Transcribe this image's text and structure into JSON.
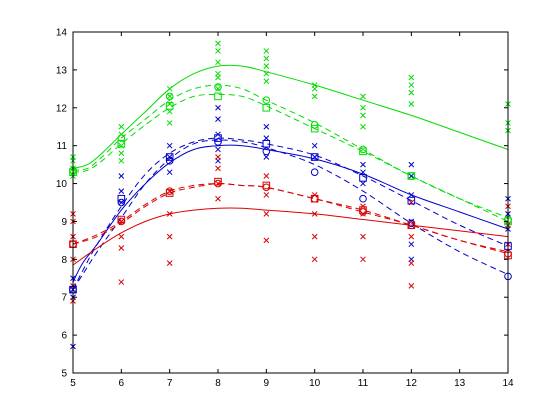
{
  "chart_data": {
    "type": "line",
    "xlim": [
      5,
      14
    ],
    "ylim": [
      5,
      14
    ],
    "x_ticks": [
      5,
      6,
      7,
      8,
      9,
      10,
      11,
      12,
      13,
      14
    ],
    "y_ticks": [
      5,
      6,
      7,
      8,
      9,
      10,
      11,
      12,
      13,
      14
    ],
    "grid": false,
    "legend": "none",
    "series": [
      {
        "color": "#00dd00",
        "style": "solid",
        "marker": "none",
        "x": [
          5,
          5.3,
          5.6,
          6,
          6.5,
          7,
          7.5,
          8,
          8.5,
          9,
          10,
          11,
          12,
          13,
          14
        ],
        "y": [
          10.4,
          10.5,
          10.8,
          11.3,
          11.9,
          12.5,
          12.9,
          13.1,
          13.1,
          12.95,
          12.6,
          12.2,
          11.8,
          11.35,
          10.9
        ]
      },
      {
        "color": "#00dd00",
        "style": "dashed",
        "marker": "circle",
        "x": [
          5,
          5.3,
          5.6,
          6,
          6.5,
          7,
          7.5,
          8,
          8.5,
          9,
          10,
          11,
          12,
          13,
          14
        ],
        "y": [
          10.35,
          10.4,
          10.7,
          11.2,
          11.7,
          12.2,
          12.5,
          12.6,
          12.5,
          12.2,
          11.6,
          10.9,
          10.2,
          9.6,
          9.1
        ]
      },
      {
        "color": "#00dd00",
        "style": "dashed",
        "marker": "square",
        "x": [
          5,
          5.3,
          5.6,
          6,
          6.5,
          7,
          7.5,
          8,
          8.5,
          9,
          10,
          11,
          12,
          13,
          14
        ],
        "y": [
          10.3,
          10.35,
          10.6,
          11.05,
          11.55,
          12.0,
          12.3,
          12.35,
          12.3,
          12.05,
          11.45,
          10.85,
          10.2,
          9.6,
          9.0
        ]
      },
      {
        "color": "#0000cc",
        "style": "solid",
        "marker": "none",
        "x": [
          5,
          5.2,
          5.5,
          6,
          6.5,
          7,
          7.5,
          8,
          8.5,
          9,
          10,
          11,
          12,
          13,
          14
        ],
        "y": [
          7.4,
          7.9,
          8.4,
          9.3,
          10.0,
          10.55,
          10.9,
          11.0,
          11.0,
          10.9,
          10.65,
          10.25,
          9.7,
          9.25,
          8.8
        ]
      },
      {
        "color": "#0000cc",
        "style": "dashed",
        "marker": "circle",
        "x": [
          5,
          5.2,
          5.5,
          6,
          6.5,
          7,
          7.5,
          8,
          8.5,
          9,
          10,
          11,
          12,
          13,
          14
        ],
        "y": [
          7.2,
          7.6,
          8.2,
          9.1,
          10.0,
          10.65,
          11.05,
          11.15,
          11.1,
          10.95,
          10.5,
          9.8,
          8.95,
          8.2,
          7.6
        ]
      },
      {
        "color": "#0000cc",
        "style": "dashed",
        "marker": "square",
        "x": [
          5,
          5.2,
          5.5,
          6,
          6.5,
          7,
          7.5,
          8,
          8.5,
          9,
          10,
          11,
          12,
          13,
          14
        ],
        "y": [
          7.2,
          7.7,
          8.4,
          9.4,
          10.25,
          10.8,
          11.1,
          11.2,
          11.15,
          11.05,
          10.75,
          10.2,
          9.55,
          8.9,
          8.35
        ]
      },
      {
        "color": "#dd0000",
        "style": "solid",
        "marker": "none",
        "x": [
          5,
          5.5,
          6,
          6.5,
          7,
          7.5,
          8,
          8.5,
          9,
          10,
          11,
          12,
          13,
          14
        ],
        "y": [
          7.85,
          8.3,
          8.7,
          9.0,
          9.2,
          9.3,
          9.35,
          9.35,
          9.3,
          9.2,
          9.05,
          8.9,
          8.75,
          8.6
        ]
      },
      {
        "color": "#dd0000",
        "style": "dashed",
        "marker": "circle",
        "x": [
          5,
          5.5,
          6,
          6.5,
          7,
          7.5,
          8,
          8.5,
          9,
          10,
          11,
          12,
          13,
          14
        ],
        "y": [
          8.4,
          8.65,
          9.0,
          9.45,
          9.8,
          9.95,
          10.0,
          9.95,
          9.9,
          9.6,
          9.3,
          8.9,
          8.5,
          8.2
        ]
      },
      {
        "color": "#dd0000",
        "style": "dashed",
        "marker": "square",
        "x": [
          5,
          5.5,
          6,
          6.5,
          7,
          7.5,
          8,
          8.5,
          9,
          10,
          11,
          12,
          13,
          14
        ],
        "y": [
          8.4,
          8.6,
          8.95,
          9.4,
          9.75,
          9.9,
          10.0,
          9.95,
          9.9,
          9.6,
          9.25,
          8.9,
          8.5,
          8.15
        ]
      }
    ],
    "scatter": [
      {
        "color": "#00dd00",
        "marker": "x",
        "points": [
          [
            5,
            10.2
          ],
          [
            5,
            10.4
          ],
          [
            5,
            10.6
          ],
          [
            5,
            10.7
          ],
          [
            6,
            10.6
          ],
          [
            6,
            10.8
          ],
          [
            6,
            11.0
          ],
          [
            6,
            11.3
          ],
          [
            6,
            11.5
          ],
          [
            7,
            11.6
          ],
          [
            7,
            11.9
          ],
          [
            7,
            12.1
          ],
          [
            7,
            12.3
          ],
          [
            7,
            12.5
          ],
          [
            8,
            12.5
          ],
          [
            8,
            12.8
          ],
          [
            8,
            12.9
          ],
          [
            8,
            13.2
          ],
          [
            8,
            13.5
          ],
          [
            8,
            13.7
          ],
          [
            9,
            12.7
          ],
          [
            9,
            12.9
          ],
          [
            9,
            13.1
          ],
          [
            9,
            13.3
          ],
          [
            9,
            13.5
          ],
          [
            10,
            12.3
          ],
          [
            10,
            12.5
          ],
          [
            10,
            12.6
          ],
          [
            11,
            11.5
          ],
          [
            11,
            11.8
          ],
          [
            11,
            12.0
          ],
          [
            11,
            12.3
          ],
          [
            12,
            12.1
          ],
          [
            12,
            12.4
          ],
          [
            12,
            12.6
          ],
          [
            12,
            12.8
          ],
          [
            14,
            11.4
          ],
          [
            14,
            11.6
          ],
          [
            14,
            12.1
          ]
        ]
      },
      {
        "color": "#0000cc",
        "marker": "x",
        "points": [
          [
            5,
            5.7
          ],
          [
            5,
            7.0
          ],
          [
            5,
            7.2
          ],
          [
            5,
            7.5
          ],
          [
            6,
            9.5
          ],
          [
            6,
            9.8
          ],
          [
            6,
            10.2
          ],
          [
            7,
            10.3
          ],
          [
            7,
            10.7
          ],
          [
            7,
            11.0
          ],
          [
            8,
            10.6
          ],
          [
            8,
            10.9
          ],
          [
            8,
            11.3
          ],
          [
            8,
            11.7
          ],
          [
            8,
            12.0
          ],
          [
            9,
            10.7
          ],
          [
            9,
            11.2
          ],
          [
            9,
            11.5
          ],
          [
            10,
            10.7
          ],
          [
            10,
            11.0
          ],
          [
            11,
            10.0
          ],
          [
            11,
            10.3
          ],
          [
            11,
            10.5
          ],
          [
            12,
            8.0
          ],
          [
            12,
            8.4
          ],
          [
            12,
            9.0
          ],
          [
            12,
            9.7
          ],
          [
            12,
            10.2
          ],
          [
            12,
            10.5
          ],
          [
            14,
            8.8
          ],
          [
            14,
            9.2
          ],
          [
            14,
            9.6
          ]
        ]
      },
      {
        "color": "#dd0000",
        "marker": "x",
        "points": [
          [
            5,
            6.9
          ],
          [
            5,
            7.3
          ],
          [
            5,
            8.0
          ],
          [
            5,
            8.6
          ],
          [
            5,
            9.0
          ],
          [
            5,
            9.2
          ],
          [
            6,
            7.4
          ],
          [
            6,
            8.3
          ],
          [
            6,
            8.6
          ],
          [
            6,
            9.0
          ],
          [
            7,
            7.9
          ],
          [
            7,
            8.6
          ],
          [
            7,
            9.2
          ],
          [
            7,
            9.8
          ],
          [
            8,
            9.6
          ],
          [
            8,
            10.0
          ],
          [
            8,
            10.4
          ],
          [
            8,
            10.7
          ],
          [
            9,
            8.5
          ],
          [
            9,
            9.2
          ],
          [
            9,
            9.7
          ],
          [
            9,
            10.2
          ],
          [
            10,
            8.0
          ],
          [
            10,
            8.6
          ],
          [
            10,
            9.2
          ],
          [
            10,
            9.7
          ],
          [
            11,
            8.0
          ],
          [
            11,
            8.6
          ],
          [
            11,
            9.2
          ],
          [
            11,
            9.4
          ],
          [
            12,
            7.3
          ],
          [
            12,
            7.9
          ],
          [
            12,
            8.6
          ],
          [
            12,
            9.5
          ],
          [
            14,
            8.4
          ],
          [
            14,
            8.9
          ],
          [
            14,
            9.4
          ]
        ]
      }
    ],
    "markers": [
      {
        "color": "#00dd00",
        "shape": "circle",
        "points": [
          [
            5,
            10.35
          ],
          [
            6,
            11.2
          ],
          [
            7,
            12.3
          ],
          [
            8,
            12.55
          ],
          [
            9,
            12.2
          ],
          [
            10,
            11.55
          ],
          [
            11,
            10.9
          ],
          [
            12,
            10.2
          ],
          [
            14,
            9.05
          ]
        ]
      },
      {
        "color": "#00dd00",
        "shape": "square",
        "points": [
          [
            5,
            10.3
          ],
          [
            6,
            11.05
          ],
          [
            7,
            12.05
          ],
          [
            8,
            12.3
          ],
          [
            9,
            12.0
          ],
          [
            10,
            11.45
          ],
          [
            11,
            10.85
          ],
          [
            12,
            10.2
          ],
          [
            14,
            9.0
          ]
        ]
      },
      {
        "color": "#0000cc",
        "shape": "circle",
        "points": [
          [
            5,
            7.2
          ],
          [
            6,
            9.5
          ],
          [
            7,
            10.6
          ],
          [
            8,
            11.1
          ],
          [
            9,
            10.85
          ],
          [
            10,
            10.3
          ],
          [
            11,
            9.6
          ],
          [
            12,
            8.95
          ],
          [
            14,
            7.55
          ]
        ]
      },
      {
        "color": "#0000cc",
        "shape": "square",
        "points": [
          [
            5,
            7.2
          ],
          [
            6,
            9.6
          ],
          [
            7,
            10.7
          ],
          [
            8,
            11.2
          ],
          [
            9,
            11.05
          ],
          [
            10,
            10.7
          ],
          [
            11,
            10.15
          ],
          [
            12,
            9.55
          ],
          [
            14,
            8.35
          ]
        ]
      },
      {
        "color": "#dd0000",
        "shape": "circle",
        "points": [
          [
            5,
            8.4
          ],
          [
            6,
            9.0
          ],
          [
            7,
            9.8
          ],
          [
            8,
            10.0
          ],
          [
            9,
            9.9
          ],
          [
            10,
            9.6
          ],
          [
            11,
            9.25
          ],
          [
            12,
            8.9
          ],
          [
            14,
            8.15
          ]
        ]
      },
      {
        "color": "#dd0000",
        "shape": "square",
        "points": [
          [
            5,
            8.4
          ],
          [
            6,
            9.05
          ],
          [
            7,
            9.75
          ],
          [
            8,
            10.05
          ],
          [
            9,
            9.95
          ],
          [
            10,
            9.6
          ],
          [
            11,
            9.3
          ],
          [
            12,
            8.9
          ],
          [
            14,
            8.1
          ]
        ]
      }
    ]
  }
}
